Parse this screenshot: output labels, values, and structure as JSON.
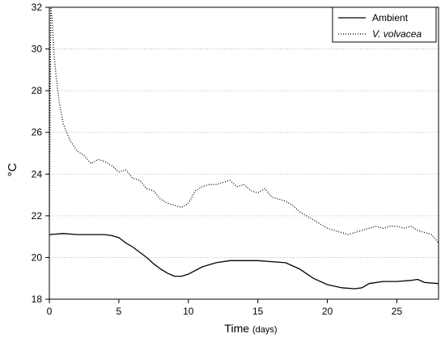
{
  "chart_data": {
    "type": "line",
    "xlabel": "Time",
    "xlabel_unit": "(days)",
    "ylabel": "°C",
    "xlim": [
      0,
      28
    ],
    "ylim": [
      18,
      32
    ],
    "xticks": [
      0,
      5,
      10,
      15,
      20,
      25
    ],
    "yticks": [
      18,
      20,
      22,
      24,
      26,
      28,
      30,
      32
    ],
    "grid": "horizontal dotted",
    "legend_position": "top-right",
    "series": [
      {
        "name": "Ambient",
        "style": "solid",
        "color": "#000000",
        "x": [
          0,
          1,
          2,
          3,
          4,
          4.5,
          5,
          5.5,
          6,
          6.5,
          7,
          7.5,
          8,
          8.5,
          9,
          9.5,
          10,
          11,
          12,
          13,
          14,
          15,
          16,
          17,
          18,
          19,
          20,
          21,
          22,
          22.5,
          23,
          24,
          25,
          26,
          26.5,
          27,
          28
        ],
        "y": [
          21.1,
          21.15,
          21.1,
          21.1,
          21.1,
          21.05,
          20.95,
          20.7,
          20.5,
          20.25,
          20.0,
          19.7,
          19.45,
          19.25,
          19.1,
          19.1,
          19.2,
          19.55,
          19.75,
          19.85,
          19.85,
          19.85,
          19.8,
          19.75,
          19.45,
          19.0,
          18.7,
          18.55,
          18.5,
          18.55,
          18.75,
          18.85,
          18.85,
          18.9,
          18.95,
          18.8,
          18.75
        ]
      },
      {
        "name": "V. volvacea",
        "style": "dotted",
        "color": "#000000",
        "x": [
          0,
          0.1,
          0.2,
          0.3,
          0.5,
          0.7,
          1,
          1.5,
          2,
          2.5,
          3,
          3.5,
          4,
          4.5,
          5,
          5.5,
          6,
          6.5,
          7,
          7.5,
          8,
          8.5,
          9,
          9.5,
          10,
          10.5,
          11,
          11.5,
          12,
          12.5,
          13,
          13.5,
          14,
          14.5,
          15,
          15.5,
          16,
          16.5,
          17,
          17.5,
          18,
          18.5,
          19,
          19.5,
          20,
          20.5,
          21,
          21.5,
          22,
          22.5,
          23,
          23.5,
          24,
          24.5,
          25,
          25.5,
          26,
          26.5,
          27,
          27.5,
          28
        ],
        "y": [
          21.8,
          32,
          31.5,
          30,
          28.6,
          27.5,
          26.4,
          25.6,
          25.1,
          24.9,
          24.5,
          24.7,
          24.6,
          24.4,
          24.1,
          24.2,
          23.8,
          23.7,
          23.3,
          23.2,
          22.8,
          22.6,
          22.5,
          22.4,
          22.6,
          23.2,
          23.4,
          23.5,
          23.5,
          23.6,
          23.7,
          23.4,
          23.5,
          23.2,
          23.1,
          23.3,
          22.9,
          22.8,
          22.7,
          22.5,
          22.2,
          22.0,
          21.8,
          21.6,
          21.4,
          21.3,
          21.2,
          21.1,
          21.2,
          21.3,
          21.4,
          21.5,
          21.4,
          21.5,
          21.5,
          21.4,
          21.5,
          21.3,
          21.2,
          21.1,
          20.7
        ]
      }
    ]
  }
}
